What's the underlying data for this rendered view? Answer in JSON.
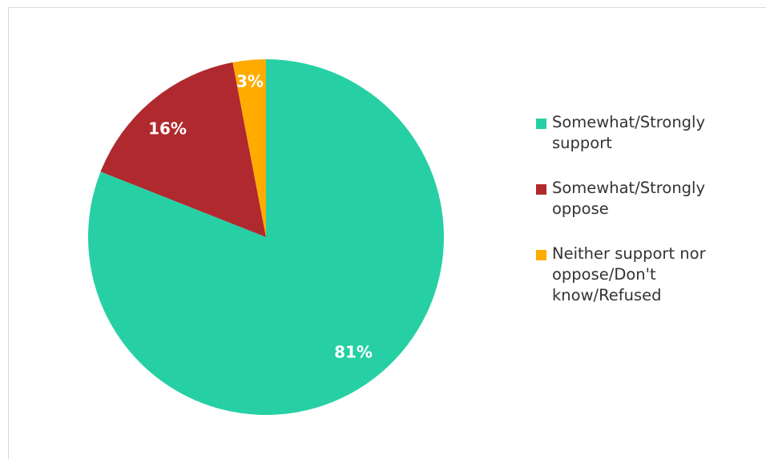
{
  "chart_data": {
    "type": "pie",
    "title": "",
    "start_angle_deg": 0,
    "direction": "clockwise",
    "slices": [
      {
        "label": "Somewhat/Strongly support",
        "value": 81,
        "display": "81%",
        "color": "#26d0a4"
      },
      {
        "label": "Somewhat/Strongly oppose",
        "value": 16,
        "display": "16%",
        "color": "#b0292e"
      },
      {
        "label": "Neither support nor oppose/Don't know/Refused",
        "value": 3,
        "display": "3%",
        "color": "#ffab00"
      }
    ],
    "legend_position": "right"
  },
  "legend": {
    "items": [
      {
        "lines": [
          "Somewhat/Strongly",
          "support"
        ]
      },
      {
        "lines": [
          "Somewhat/Strongly",
          "oppose"
        ]
      },
      {
        "lines": [
          "Neither support nor",
          "oppose/Don't",
          "know/Refused"
        ]
      }
    ]
  }
}
